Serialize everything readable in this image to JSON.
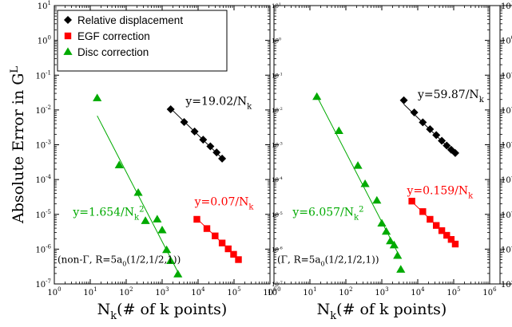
{
  "chart_data": {
    "type": "scatter",
    "scale": {
      "x": "log",
      "y": "log"
    },
    "ylabel": "Absolute Error in G",
    "ylabel_superscript": "L",
    "xlabel": "N",
    "xlabel_subscript": "k",
    "xlabel_suffix": "(# of k points)",
    "xlim": [
      1,
      1000000
    ],
    "ylim": [
      1e-07,
      10
    ],
    "x_ticks": [
      {
        "value": 1,
        "mant": "10",
        "exp": "0"
      },
      {
        "value": 10,
        "mant": "10",
        "exp": "1"
      },
      {
        "value": 100,
        "mant": "10",
        "exp": "2"
      },
      {
        "value": 1000,
        "mant": "10",
        "exp": "3"
      },
      {
        "value": 10000,
        "mant": "10",
        "exp": "4"
      },
      {
        "value": 100000,
        "mant": "10",
        "exp": "5"
      },
      {
        "value": 1000000,
        "mant": "10",
        "exp": "6"
      }
    ],
    "y_ticks": [
      {
        "value": 10,
        "mant": "10",
        "exp": "1"
      },
      {
        "value": 1,
        "mant": "10",
        "exp": "0"
      },
      {
        "value": 0.1,
        "mant": "10",
        "exp": "-1"
      },
      {
        "value": 0.01,
        "mant": "10",
        "exp": "-2"
      },
      {
        "value": 0.001,
        "mant": "10",
        "exp": "-3"
      },
      {
        "value": 0.0001,
        "mant": "10",
        "exp": "-4"
      },
      {
        "value": 1e-05,
        "mant": "10",
        "exp": "-5"
      },
      {
        "value": 1e-06,
        "mant": "10",
        "exp": "-6"
      },
      {
        "value": 1e-07,
        "mant": "10",
        "exp": "-7"
      }
    ],
    "legend": {
      "placement": "top-left",
      "entries": [
        {
          "label": "Relative displacement",
          "color": "#000000",
          "marker": "diamond"
        },
        {
          "label": "EGF correction",
          "color": "#ff0000",
          "marker": "square"
        },
        {
          "label": "Disc correction",
          "color": "#00aa00",
          "marker": "triangle"
        }
      ]
    },
    "panels": [
      {
        "label_parts": [
          "(non-Γ, R=5a",
          "0",
          "(1/2,1/2,1))"
        ],
        "series": [
          {
            "name": "Relative displacement",
            "color": "#000000",
            "marker": "diamond",
            "points": [
              [
                1728,
                0.0105
              ],
              [
                4096,
                0.0045
              ],
              [
                8000,
                0.0024
              ],
              [
                13824,
                0.0014
              ],
              [
                21952,
                0.0009
              ],
              [
                32768,
                0.0006
              ],
              [
                46656,
                0.0004
              ]
            ],
            "fit": {
              "coef": 19.02,
              "power": 1,
              "x_range": [
                1728,
                46656
              ]
            },
            "fit_label_parts": [
              "y=19.02/N",
              "k",
              ""
            ],
            "fit_label_anchor": [
              4500,
              0.014
            ]
          },
          {
            "name": "EGF correction",
            "color": "#ff0000",
            "marker": "square",
            "points": [
              [
                9261,
                7.2e-06
              ],
              [
                17576,
                3.9e-06
              ],
              [
                29791,
                2.4e-06
              ],
              [
                46656,
                1.5e-06
              ],
              [
                68921,
                1.02e-06
              ],
              [
                97336,
                7.1e-07
              ],
              [
                132651,
                5e-07
              ]
            ],
            "fit": {
              "coef": 0.07,
              "power": 1,
              "x_range": [
                9261,
                132651
              ]
            },
            "fit_label_parts": [
              "y=0.07/N",
              "k",
              ""
            ],
            "fit_label_anchor": [
              8000,
              1.8e-05
            ]
          },
          {
            "name": "Disc correction",
            "color": "#00aa00",
            "marker": "triangle",
            "points": [
              [
                15.6,
                0.022
              ],
              [
                64,
                0.00026
              ],
              [
                216,
                4.2e-05
              ],
              [
                343,
                6.5e-06
              ],
              [
                729,
                7.2e-06
              ],
              [
                1000,
                3.5e-06
              ],
              [
                1331,
                9.5e-07
              ],
              [
                1728,
                4.6e-07
              ],
              [
                2744,
                1.9e-07
              ]
            ],
            "fit": {
              "coef": 1.654,
              "power": 2,
              "x_range": [
                15.6,
                2744
              ]
            },
            "fit_label_parts": [
              "y=1.654/N",
              "k",
              "2"
            ],
            "fit_label_anchor": [
              3.3,
              9e-06
            ]
          }
        ]
      },
      {
        "label_parts": [
          "(Γ, R=5a",
          "0",
          "(1/2,1/2,1))"
        ],
        "series": [
          {
            "name": "Relative displacement",
            "color": "#000000",
            "marker": "diamond",
            "points": [
              [
                4096,
                0.019
              ],
              [
                8000,
                0.0085
              ],
              [
                13824,
                0.0044
              ],
              [
                21952,
                0.0028
              ],
              [
                32768,
                0.0019
              ],
              [
                46656,
                0.0013
              ],
              [
                64000,
                0.00095
              ],
              [
                85184,
                0.00072
              ],
              [
                110592,
                0.00058
              ]
            ],
            "fit": {
              "coef": 59.87,
              "power": 1,
              "x_range": [
                4096,
                110592
              ]
            },
            "fit_label_parts": [
              "y=59.87/N",
              "k",
              ""
            ],
            "fit_label_anchor": [
              10000,
              0.022
            ]
          },
          {
            "name": "EGF correction",
            "color": "#ff0000",
            "marker": "square",
            "points": [
              [
                6859,
                2.4e-05
              ],
              [
                13824,
                1.2e-05
              ],
              [
                21952,
                7.2e-06
              ],
              [
                32768,
                4.8e-06
              ],
              [
                46656,
                3.4e-06
              ],
              [
                64000,
                2.5e-06
              ],
              [
                85184,
                1.9e-06
              ],
              [
                110592,
                1.4e-06
              ]
            ],
            "fit": {
              "coef": 0.159,
              "power": 1,
              "x_range": [
                6859,
                110592
              ]
            },
            "fit_label_parts": [
              "y=0.159/N",
              "k",
              ""
            ],
            "fit_label_anchor": [
              5000,
              3.8e-05
            ]
          },
          {
            "name": "Disc correction",
            "color": "#00aa00",
            "marker": "triangle",
            "points": [
              [
                15.6,
                0.024
              ],
              [
                64,
                0.0025
              ],
              [
                216,
                0.00025
              ],
              [
                343,
                7.5e-05
              ],
              [
                729,
                2.5e-05
              ],
              [
                1000,
                5.5e-06
              ],
              [
                1331,
                3.2e-06
              ],
              [
                1728,
                1.7e-06
              ],
              [
                2197,
                1.3e-06
              ],
              [
                2744,
                6.5e-07
              ],
              [
                3375,
                2.6e-07
              ]
            ],
            "fit": {
              "coef": 6.057,
              "power": 2,
              "x_range": [
                15.6,
                3375
              ]
            },
            "fit_label_parts": [
              "y=6.057/N",
              "k",
              "2"
            ],
            "fit_label_anchor": [
              3.3,
              9e-06
            ]
          }
        ]
      }
    ]
  }
}
